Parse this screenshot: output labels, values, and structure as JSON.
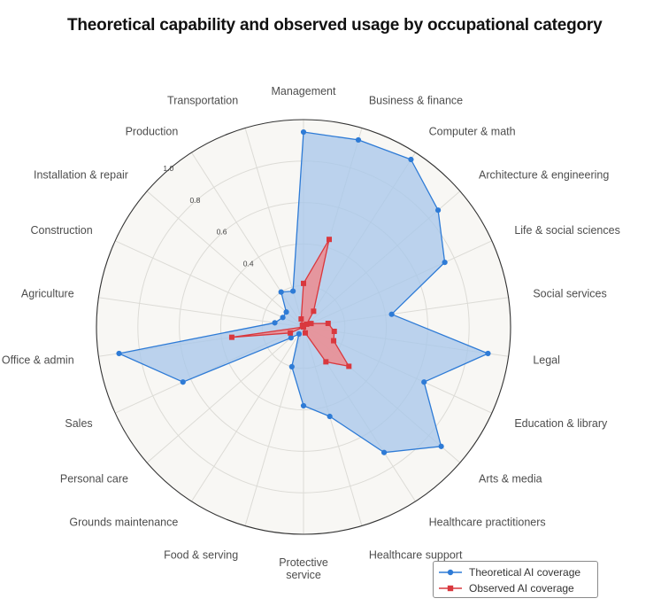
{
  "title": "Theoretical capability and observed usage by occupational category",
  "colors": {
    "theoretical_line": "#2e7bd6",
    "theoretical_fill": "#a9c8ea",
    "observed_line": "#d9383e",
    "observed_fill": "#ec8c8f",
    "plot_background": "#f8f7f4",
    "grid": "#dcdbd6"
  },
  "legend": {
    "theoretical_label": "Theoretical AI coverage",
    "observed_label": "Observed AI coverage",
    "placement": "bottom-right"
  },
  "chart_data": {
    "type": "radar",
    "title": "Theoretical capability and observed usage by occupational category",
    "categories": [
      "Management",
      "Business & finance",
      "Computer & math",
      "Architecture & engineering",
      "Life & social sciences",
      "Social services",
      "Legal",
      "Education & library",
      "Arts & media",
      "Healthcare practitioners",
      "Healthcare support",
      "Protective service",
      "Food & serving",
      "Grounds maintenance",
      "Personal care",
      "Sales",
      "Office & admin",
      "Agriculture",
      "Construction",
      "Installation & repair",
      "Production",
      "Transportation"
    ],
    "radial_axis": {
      "range": [
        0,
        1
      ],
      "gridlines": [
        0.2,
        0.4,
        0.6,
        0.8,
        1.0
      ],
      "tick_labels": [
        "0.4",
        "0.6",
        "0.8",
        "1.0"
      ]
    },
    "series": [
      {
        "name": "Theoretical AI coverage",
        "values": [
          0.94,
          0.94,
          0.96,
          0.86,
          0.75,
          0.43,
          0.9,
          0.64,
          0.88,
          0.72,
          0.45,
          0.38,
          0.2,
          0.04,
          0.08,
          0.64,
          0.9,
          0.14,
          0.11,
          0.11,
          0.2,
          0.18
        ]
      },
      {
        "name": "Observed AI coverage",
        "values": [
          0.21,
          0.44,
          0.09,
          0.02,
          0.04,
          0.12,
          0.15,
          0.16,
          0.29,
          0.2,
          0.03,
          0.0,
          0.0,
          0.0,
          0.0,
          0.07,
          0.35,
          0.0,
          0.0,
          0.0,
          0.01,
          0.04
        ]
      }
    ],
    "grid": true
  }
}
